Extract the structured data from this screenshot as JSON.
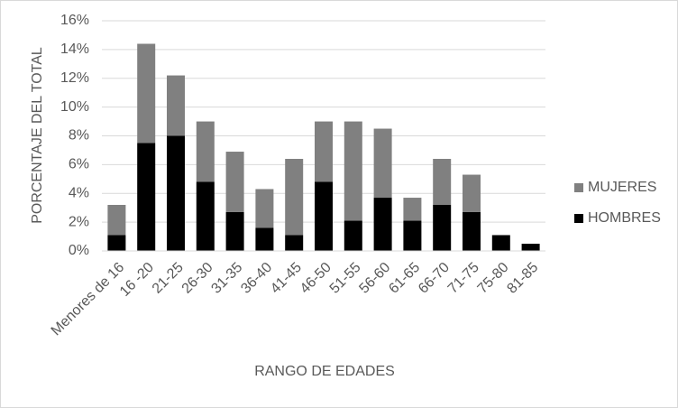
{
  "chart_data": {
    "type": "stacked-bar",
    "x_label": "RANGO DE EDADES",
    "y_label": "PORCENTAJE DEL TOTAL",
    "categories": [
      "Menores de 16",
      "16 -20",
      "21-25",
      "26-30",
      "31-35",
      "36-40",
      "41-45",
      "46-50",
      "51-55",
      "56-60",
      "61-65",
      "66-70",
      "71-75",
      "75-80",
      "81-85"
    ],
    "series": [
      {
        "name": "HOMBRES",
        "color": "#000000",
        "values": [
          1.1,
          7.5,
          8.0,
          4.8,
          2.7,
          1.6,
          1.1,
          4.8,
          2.1,
          3.7,
          2.1,
          3.2,
          2.7,
          1.1,
          0.5
        ]
      },
      {
        "name": "MUJERES",
        "color": "#808080",
        "values": [
          2.1,
          6.9,
          4.2,
          4.2,
          4.2,
          2.7,
          5.3,
          4.2,
          6.9,
          4.8,
          1.6,
          3.2,
          2.6,
          0,
          0
        ]
      }
    ],
    "ylim": [
      0,
      16
    ],
    "yticks": [
      {
        "value": 0,
        "label": "0%"
      },
      {
        "value": 2,
        "label": "2%"
      },
      {
        "value": 4,
        "label": "4%"
      },
      {
        "value": 6,
        "label": "6%"
      },
      {
        "value": 8,
        "label": "8%"
      },
      {
        "value": 10,
        "label": "10%"
      },
      {
        "value": 12,
        "label": "12%"
      },
      {
        "value": 14,
        "label": "14%"
      },
      {
        "value": 16,
        "label": "16%"
      }
    ],
    "grid": true,
    "legend": "right"
  }
}
